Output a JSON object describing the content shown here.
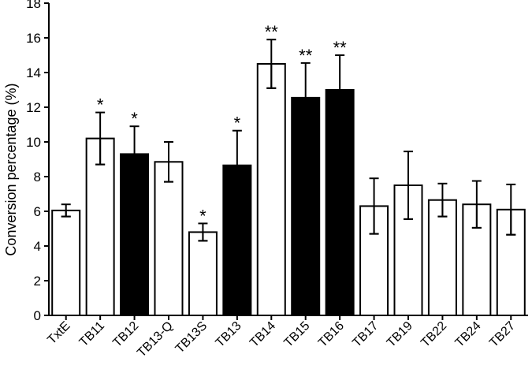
{
  "chart_data": {
    "type": "bar",
    "title": "",
    "xlabel": "",
    "ylabel": "Conversion percentage (%)",
    "ylim": [
      0,
      18
    ],
    "yticks": [
      0,
      2,
      4,
      6,
      8,
      10,
      12,
      14,
      16,
      18
    ],
    "grid": false,
    "legend": "none",
    "colors": {
      "open": "#ffffff",
      "filled": "#000000",
      "stroke": "#000000"
    },
    "categories": [
      "TxtE",
      "TB11",
      "TB12",
      "TB13-Q",
      "TB13S",
      "TB13",
      "TB14",
      "TB15",
      "TB16",
      "TB17",
      "TB19",
      "TB22",
      "TB24",
      "TB27"
    ],
    "values": [
      6.05,
      10.2,
      9.3,
      8.85,
      4.8,
      8.65,
      14.5,
      12.55,
      13.0,
      6.3,
      7.5,
      6.65,
      6.4,
      6.1
    ],
    "errors": [
      0.35,
      1.5,
      1.6,
      1.15,
      0.5,
      2.0,
      1.4,
      2.0,
      2.0,
      1.6,
      1.95,
      0.95,
      1.35,
      1.45
    ],
    "fill": [
      "open",
      "open",
      "filled",
      "open",
      "open",
      "filled",
      "open",
      "filled",
      "filled",
      "open",
      "open",
      "open",
      "open",
      "open"
    ],
    "significance": [
      "",
      "*",
      "*",
      "",
      "*",
      "*",
      "**",
      "**",
      "**",
      "",
      "",
      "",
      "",
      ""
    ]
  }
}
